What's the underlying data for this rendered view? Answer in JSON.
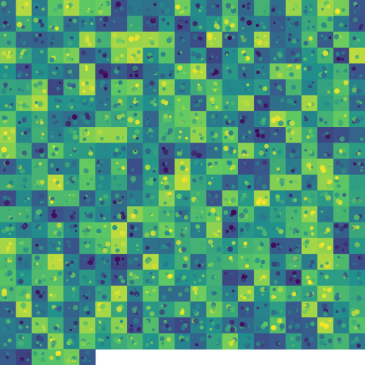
{
  "image": {
    "kind": "tile-mosaic",
    "tile_grid": {
      "columns": 23,
      "rows_full": 22,
      "last_row_tiles": 6
    },
    "colormap": [
      "#440154",
      "#3b528b",
      "#21918c",
      "#5ec962",
      "#fde725"
    ],
    "background": "#ffffff",
    "seed": 7
  }
}
